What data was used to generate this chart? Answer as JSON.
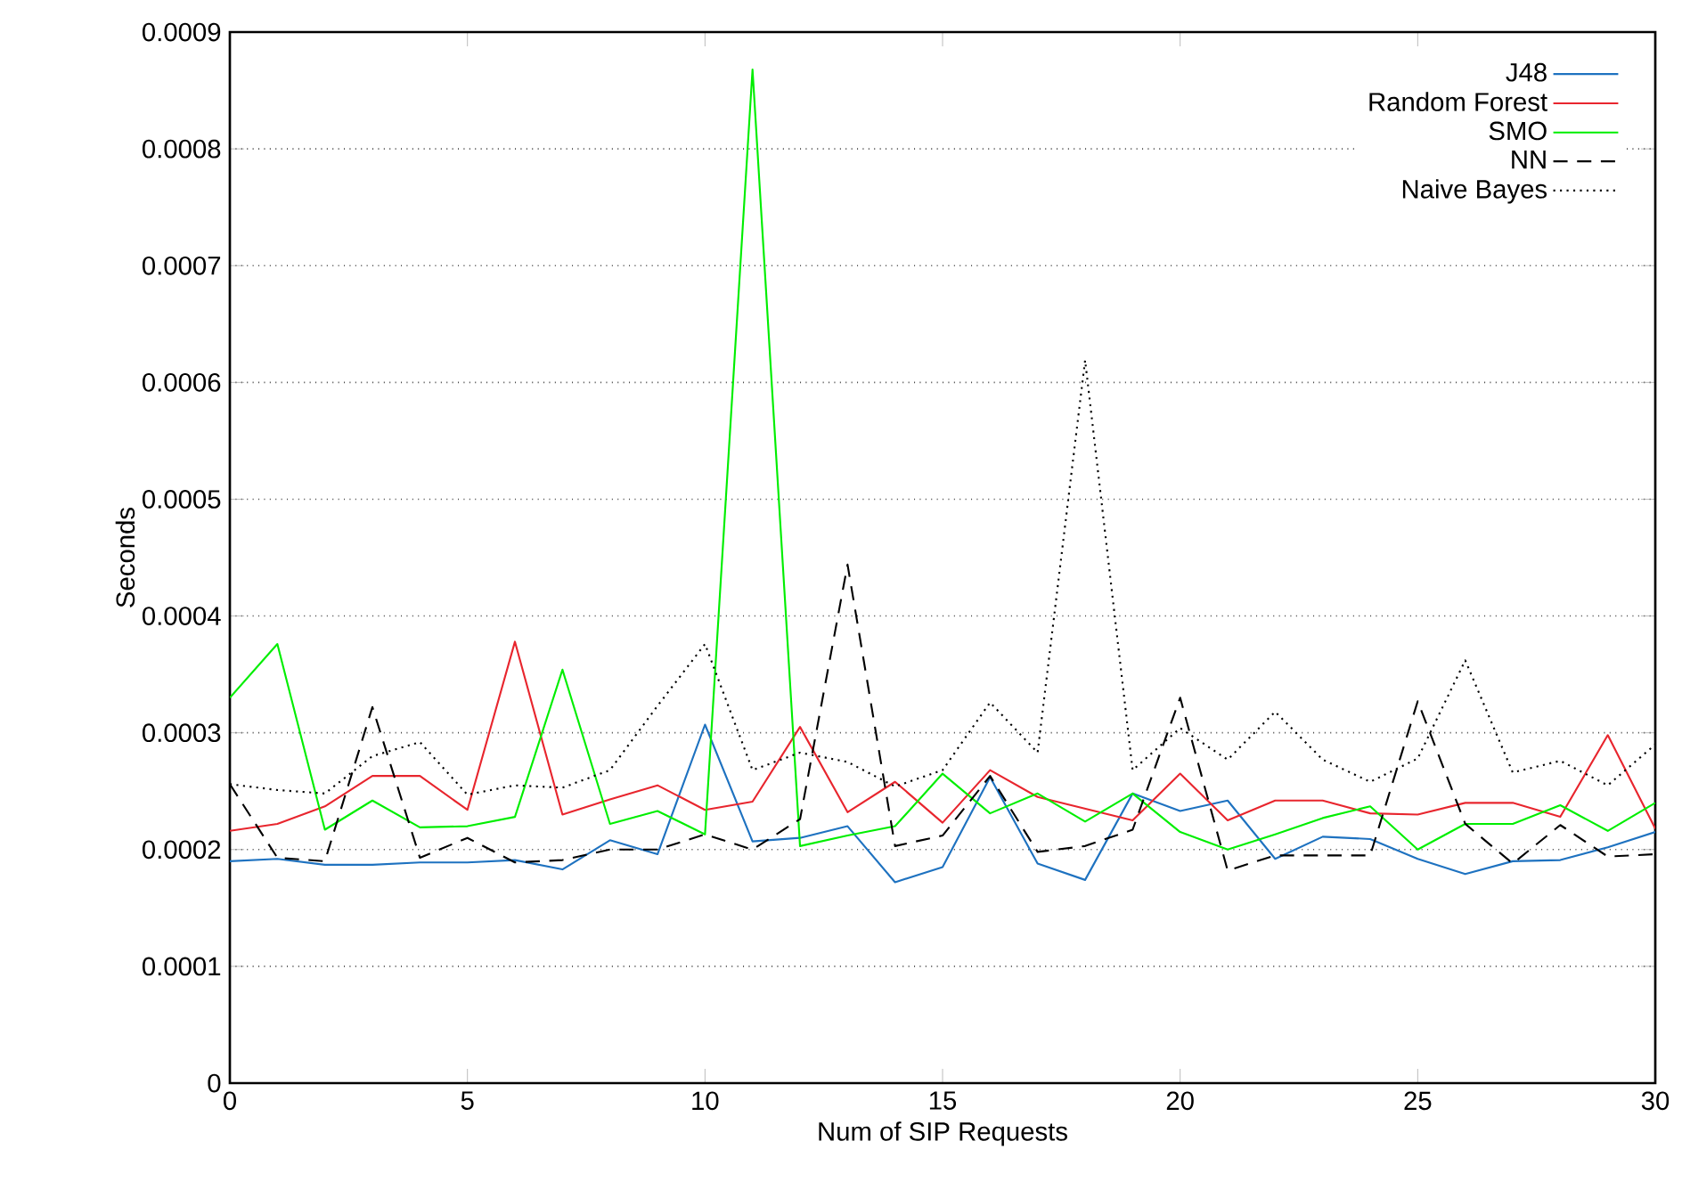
{
  "chart_data": {
    "type": "line",
    "xlabel": "Num of SIP Requests",
    "ylabel": "Seconds",
    "x": [
      0,
      1,
      2,
      3,
      4,
      5,
      6,
      7,
      8,
      9,
      10,
      11,
      12,
      13,
      14,
      15,
      16,
      17,
      18,
      19,
      20,
      21,
      22,
      23,
      24,
      25,
      26,
      27,
      28,
      29,
      30
    ],
    "series": [
      {
        "name": "J48",
        "color": "#1e72c0",
        "line_style": "solid",
        "values": [
          0.00019,
          0.000192,
          0.000187,
          0.000187,
          0.000189,
          0.000189,
          0.000191,
          0.000183,
          0.000208,
          0.000196,
          0.000307,
          0.000207,
          0.00021,
          0.00022,
          0.000172,
          0.000185,
          0.000262,
          0.000188,
          0.000174,
          0.000248,
          0.000233,
          0.000242,
          0.000192,
          0.000211,
          0.000209,
          0.000192,
          0.000179,
          0.00019,
          0.000191,
          0.000202,
          0.000215
        ]
      },
      {
        "name": "Random Forest",
        "color": "#e8262e",
        "line_style": "solid",
        "values": [
          0.000216,
          0.000222,
          0.000237,
          0.000263,
          0.000263,
          0.000234,
          0.000378,
          0.00023,
          0.000243,
          0.000255,
          0.000234,
          0.000241,
          0.000305,
          0.000232,
          0.000258,
          0.000223,
          0.000268,
          0.000245,
          0.000235,
          0.000225,
          0.000265,
          0.000225,
          0.000242,
          0.000242,
          0.000231,
          0.00023,
          0.00024,
          0.00024,
          0.000228,
          0.000298,
          0.000218
        ]
      },
      {
        "name": "SMO",
        "color": "#00ee00",
        "line_style": "solid",
        "values": [
          0.00033,
          0.000376,
          0.000217,
          0.000242,
          0.000219,
          0.00022,
          0.000228,
          0.000354,
          0.000222,
          0.000233,
          0.000213,
          0.000868,
          0.000203,
          0.000212,
          0.00022,
          0.000265,
          0.000231,
          0.000248,
          0.000224,
          0.000248,
          0.000215,
          0.0002,
          0.000213,
          0.000227,
          0.000237,
          0.0002,
          0.000222,
          0.000222,
          0.000238,
          0.000216,
          0.00024
        ]
      },
      {
        "name": "NN",
        "color": "#000000",
        "line_style": "dashed",
        "values": [
          0.000256,
          0.000193,
          0.00019,
          0.000322,
          0.000193,
          0.00021,
          0.000189,
          0.000191,
          0.0002,
          0.0002,
          0.000213,
          0.0002,
          0.000226,
          0.000444,
          0.000203,
          0.000212,
          0.000263,
          0.000198,
          0.000203,
          0.000217,
          0.00033,
          0.000182,
          0.000195,
          0.000195,
          0.000195,
          0.000327,
          0.000222,
          0.000188,
          0.000221,
          0.000194,
          0.000196
        ]
      },
      {
        "name": "Naive Bayes",
        "color": "#000000",
        "line_style": "dotted",
        "values": [
          0.000256,
          0.000251,
          0.000248,
          0.00028,
          0.000292,
          0.000247,
          0.000255,
          0.000253,
          0.000268,
          0.000323,
          0.000376,
          0.000268,
          0.000283,
          0.000275,
          0.000254,
          0.000268,
          0.000326,
          0.000283,
          0.000619,
          0.000268,
          0.000304,
          0.000277,
          0.000318,
          0.000277,
          0.000258,
          0.000278,
          0.000362,
          0.000266,
          0.000276,
          0.000255,
          0.00029
        ]
      }
    ],
    "xlim": [
      0,
      30
    ],
    "ylim": [
      0,
      0.0009
    ],
    "xticks": [
      0,
      5,
      10,
      15,
      20,
      25,
      30
    ],
    "yticks": [
      0,
      0.0001,
      0.0002,
      0.0003,
      0.0004,
      0.0005,
      0.0006,
      0.0007,
      0.0008,
      0.0009
    ],
    "grid": "y",
    "legend": "top right",
    "marker": "none"
  }
}
